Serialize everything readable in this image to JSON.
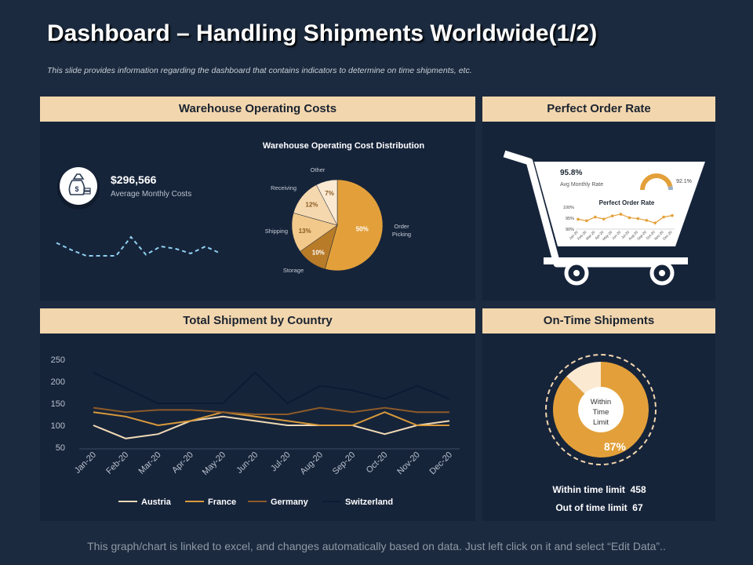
{
  "title": "Dashboard – Handling Shipments Worldwide(1/2)",
  "subtitle": "This slide provides information regarding the dashboard  that contains indicators to determine on time shipments, etc.",
  "panels": {
    "warehouse": "Warehouse Operating Costs",
    "perfect_order": "Perfect Order Rate",
    "shipment_country": "Total Shipment by Country",
    "on_time": "On-Time Shipments"
  },
  "warehouse": {
    "avg_cost_value": "$296,566",
    "avg_cost_label": "Average Monthly Costs",
    "icon": "money-bag-icon",
    "sparkline": [
      0.75,
      0.45,
      0.2,
      0.2,
      0.2,
      1.0,
      0.25,
      0.6,
      0.5,
      0.3,
      0.6,
      0.3
    ]
  },
  "perfect_order": {
    "avg_rate_value": "95.8%",
    "avg_rate_label": "Avg Monthly Rate",
    "gauge_value": "92.1%",
    "gauge_fraction": 0.921,
    "mini_chart_title": "Perfect Order Rate",
    "icon": "shopping-cart-icon"
  },
  "on_time": {
    "center_label": "Within Time Limit",
    "percent_label": "87%",
    "within_text": "Within time limit  458",
    "out_text": "Out of time limit  67"
  },
  "footer": "This graph/chart is linked to excel, and changes automatically based on data. Just left click on it and select “Edit Data”..",
  "colors": {
    "background": "#1b2a3e",
    "panel": "#16243a",
    "header": "#f2d6ae",
    "orange": "#e3a03a"
  },
  "chart_data": [
    {
      "type": "pie",
      "title": "Warehouse Operating Cost Distribution",
      "categories": [
        "Order Picking",
        "Storage",
        "Shipping",
        "Receiving",
        "Other"
      ],
      "values": [
        50,
        10,
        13,
        12,
        7
      ],
      "labels": [
        "50%",
        "10%",
        "13%",
        "12%",
        "7%"
      ],
      "colors": [
        "#e3a03a",
        "#b87b28",
        "#f2c98a",
        "#f6d8ae",
        "#fbe9d2"
      ]
    },
    {
      "type": "line",
      "title": "Perfect Order Rate",
      "categories": [
        "Jan-20",
        "Feb-20",
        "Mar-20",
        "Apr-20",
        "May-20",
        "Jun-20",
        "Jul-20",
        "Aug-20",
        "Sep-20",
        "Oct-20",
        "Nov-20",
        "Dec-20"
      ],
      "values": [
        94.5,
        93.8,
        95.5,
        94.6,
        96.0,
        96.8,
        95.2,
        94.8,
        94.0,
        92.8,
        95.5,
        96.2
      ],
      "ylim": [
        90,
        100
      ],
      "ytick_labels": [
        "100%",
        "95%",
        "90%"
      ],
      "yticks": [
        100,
        95,
        90
      ]
    },
    {
      "type": "line",
      "title": "Total Shipment by Country",
      "categories": [
        "Jan-20",
        "Feb-20",
        "Mar-20",
        "Apr-20",
        "May-20",
        "Jun-20",
        "Jul-20",
        "Aug-20",
        "Sep-20",
        "Oct-20",
        "Nov-20",
        "Dec-20"
      ],
      "series": [
        {
          "name": "Austria",
          "color": "#f0d9b5",
          "values": [
            100,
            70,
            80,
            110,
            120,
            110,
            100,
            100,
            100,
            80,
            100,
            110
          ]
        },
        {
          "name": "France",
          "color": "#d99a3a",
          "values": [
            130,
            120,
            100,
            110,
            130,
            120,
            110,
            100,
            100,
            130,
            100,
            100
          ]
        },
        {
          "name": "Germany",
          "color": "#8c5a28",
          "values": [
            140,
            130,
            135,
            135,
            130,
            125,
            125,
            140,
            130,
            140,
            130,
            130
          ]
        },
        {
          "name": "Switzerland",
          "color": "#0c1a33",
          "values": [
            220,
            185,
            150,
            150,
            150,
            220,
            150,
            190,
            180,
            160,
            190,
            160
          ]
        }
      ],
      "yticks": [
        250,
        200,
        150,
        100,
        50
      ],
      "ylim": [
        50,
        250
      ]
    },
    {
      "type": "pie",
      "title": "On-Time Shipments",
      "categories": [
        "Within time limit",
        "Out of time limit"
      ],
      "values": [
        458,
        67
      ],
      "colors": [
        "#e3a03a",
        "#fbe9d2"
      ]
    }
  ]
}
